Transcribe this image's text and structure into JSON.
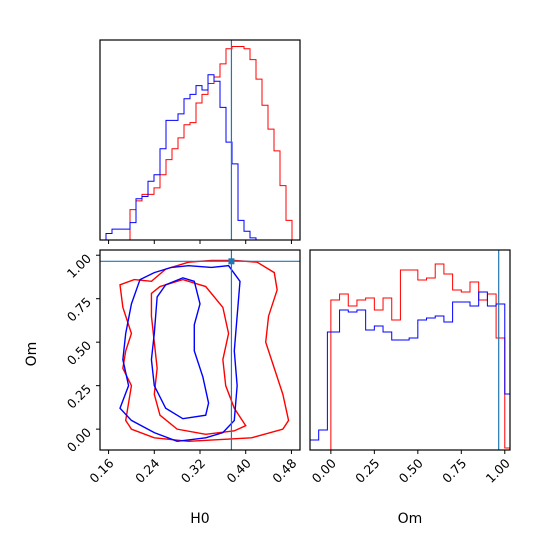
{
  "chart_data": {
    "type": "corner",
    "parameters": [
      "H0",
      "Om"
    ],
    "truth": {
      "H0": 0.375,
      "Om": 0.965
    },
    "colors": {
      "series_a": "#ff0000",
      "series_b": "#0000ff",
      "truth": "#1f77b4"
    },
    "panels": [
      {
        "id": "H0-marginal",
        "type": "histogram",
        "xlim": [
          0.145,
          0.495
        ],
        "bin_edges": [
          0.145,
          0.1555,
          0.166,
          0.1765,
          0.187,
          0.1975,
          0.208,
          0.2185,
          0.229,
          0.2395,
          0.25,
          0.2605,
          0.271,
          0.2815,
          0.292,
          0.3025,
          0.313,
          0.3235,
          0.334,
          0.3445,
          0.355,
          0.3655,
          0.376,
          0.3865,
          0.397,
          0.4075,
          0.418,
          0.4285,
          0.439,
          0.4495,
          0.46,
          0.4705,
          0.481,
          0.495
        ],
        "series": [
          {
            "color_key": "series_a",
            "values": [
              0,
              0,
              0,
              0,
              0,
              0.7,
              0.9,
              1.05,
              1.05,
              1.2,
              1.5,
              1.85,
              2.1,
              2.35,
              2.65,
              2.7,
              3.15,
              3.35,
              3.6,
              3.75,
              4.05,
              4.4,
              4.45,
              4.45,
              4.4,
              4.15,
              3.7,
              3.1,
              2.55,
              2.05,
              1.25,
              0.45,
              0
            ]
          },
          {
            "color_key": "series_b",
            "values": [
              0,
              0.15,
              0.25,
              0.25,
              0.25,
              0.4,
              0.95,
              1.0,
              1.35,
              1.5,
              2.1,
              2.75,
              2.75,
              2.9,
              3.25,
              3.35,
              3.55,
              3.45,
              3.8,
              3.65,
              3.05,
              2.25,
              1.75,
              0.45,
              0.2,
              0.05,
              0,
              0,
              0,
              0,
              0,
              0,
              0
            ]
          }
        ]
      },
      {
        "id": "H0-Om-contour",
        "type": "contour",
        "xlabel": "H0",
        "ylabel": "Om",
        "xlim": [
          0.145,
          0.495
        ],
        "ylim": [
          -0.12,
          1.03
        ],
        "xticks": [
          "0.16",
          "0.24",
          "0.32",
          "0.40",
          "0.48"
        ],
        "yticks": [
          "0.00",
          "0.25",
          "0.50",
          "0.75",
          "1.00"
        ],
        "series": [
          {
            "color_key": "series_a",
            "contours": [
              [
                [
                  0.18,
                  0.83
                ],
                [
                  0.205,
                  0.86
                ],
                [
                  0.235,
                  0.85
                ],
                [
                  0.26,
                  0.92
                ],
                [
                  0.3,
                  0.96
                ],
                [
                  0.34,
                  0.97
                ],
                [
                  0.38,
                  0.97
                ],
                [
                  0.42,
                  0.96
                ],
                [
                  0.45,
                  0.9
                ],
                [
                  0.455,
                  0.8
                ],
                [
                  0.44,
                  0.65
                ],
                [
                  0.435,
                  0.5
                ],
                [
                  0.45,
                  0.35
                ],
                [
                  0.465,
                  0.2
                ],
                [
                  0.475,
                  0.05
                ],
                [
                  0.465,
                  0.0
                ],
                [
                  0.41,
                  -0.05
                ],
                [
                  0.3,
                  -0.07
                ],
                [
                  0.24,
                  -0.05
                ],
                [
                  0.2,
                  0.0
                ],
                [
                  0.19,
                  0.05
                ],
                [
                  0.195,
                  0.15
                ],
                [
                  0.2,
                  0.25
                ],
                [
                  0.185,
                  0.35
                ],
                [
                  0.19,
                  0.45
                ],
                [
                  0.2,
                  0.55
                ],
                [
                  0.185,
                  0.7
                ],
                [
                  0.18,
                  0.83
                ]
              ],
              [
                [
                  0.235,
                  0.78
                ],
                [
                  0.25,
                  0.82
                ],
                [
                  0.29,
                  0.86
                ],
                [
                  0.33,
                  0.82
                ],
                [
                  0.36,
                  0.7
                ],
                [
                  0.37,
                  0.55
                ],
                [
                  0.36,
                  0.4
                ],
                [
                  0.365,
                  0.25
                ],
                [
                  0.38,
                  0.12
                ],
                [
                  0.4,
                  0.02
                ],
                [
                  0.38,
                  -0.01
                ],
                [
                  0.33,
                  -0.03
                ],
                [
                  0.28,
                  0.0
                ],
                [
                  0.25,
                  0.08
                ],
                [
                  0.24,
                  0.2
                ],
                [
                  0.245,
                  0.35
                ],
                [
                  0.24,
                  0.5
                ],
                [
                  0.235,
                  0.65
                ],
                [
                  0.235,
                  0.78
                ]
              ]
            ]
          },
          {
            "color_key": "series_b",
            "contours": [
              [
                [
                  0.2,
                  0.72
                ],
                [
                  0.215,
                  0.86
                ],
                [
                  0.24,
                  0.9
                ],
                [
                  0.27,
                  0.93
                ],
                [
                  0.3,
                  0.94
                ],
                [
                  0.34,
                  0.93
                ],
                [
                  0.37,
                  0.94
                ],
                [
                  0.39,
                  0.85
                ],
                [
                  0.385,
                  0.65
                ],
                [
                  0.38,
                  0.45
                ],
                [
                  0.385,
                  0.25
                ],
                [
                  0.38,
                  0.05
                ],
                [
                  0.36,
                  -0.02
                ],
                [
                  0.33,
                  -0.05
                ],
                [
                  0.28,
                  -0.07
                ],
                [
                  0.24,
                  -0.02
                ],
                [
                  0.2,
                  0.05
                ],
                [
                  0.18,
                  0.12
                ],
                [
                  0.195,
                  0.25
                ],
                [
                  0.185,
                  0.4
                ],
                [
                  0.19,
                  0.55
                ],
                [
                  0.2,
                  0.72
                ]
              ],
              [
                [
                  0.245,
                  0.76
                ],
                [
                  0.26,
                  0.83
                ],
                [
                  0.29,
                  0.87
                ],
                [
                  0.31,
                  0.85
                ],
                [
                  0.32,
                  0.72
                ],
                [
                  0.31,
                  0.6
                ],
                [
                  0.31,
                  0.45
                ],
                [
                  0.325,
                  0.3
                ],
                [
                  0.335,
                  0.15
                ],
                [
                  0.33,
                  0.08
                ],
                [
                  0.29,
                  0.06
                ],
                [
                  0.26,
                  0.12
                ],
                [
                  0.24,
                  0.25
                ],
                [
                  0.235,
                  0.4
                ],
                [
                  0.24,
                  0.55
                ],
                [
                  0.245,
                  0.76
                ]
              ]
            ]
          }
        ]
      },
      {
        "id": "Om-marginal",
        "type": "histogram",
        "xlabel": "Om",
        "xlim": [
          -0.12,
          1.03
        ],
        "xticks": [
          "0.00",
          "0.25",
          "0.50",
          "0.75",
          "1.00"
        ],
        "bin_edges": [
          -0.12,
          -0.07,
          -0.02,
          0.0,
          0.05,
          0.1,
          0.15,
          0.2,
          0.25,
          0.3,
          0.35,
          0.4,
          0.45,
          0.5,
          0.55,
          0.6,
          0.65,
          0.7,
          0.75,
          0.8,
          0.85,
          0.9,
          0.95,
          1.0,
          1.03
        ],
        "series": [
          {
            "color_key": "series_a",
            "values": [
              0,
              0,
              0,
              0.75,
              0.78,
              0.72,
              0.75,
              0.76,
              0.7,
              0.76,
              0.65,
              0.9,
              0.9,
              0.85,
              0.86,
              0.93,
              0.88,
              0.8,
              0.79,
              0.84,
              0.75,
              0.78,
              0.56,
              0.01
            ]
          },
          {
            "color_key": "series_b",
            "values": [
              0.05,
              0.1,
              0.59,
              0.59,
              0.7,
              0.69,
              0.7,
              0.6,
              0.62,
              0.59,
              0.55,
              0.55,
              0.56,
              0.65,
              0.66,
              0.67,
              0.64,
              0.74,
              0.74,
              0.72,
              0.79,
              0.72,
              0.73,
              0.28
            ]
          }
        ]
      }
    ]
  }
}
